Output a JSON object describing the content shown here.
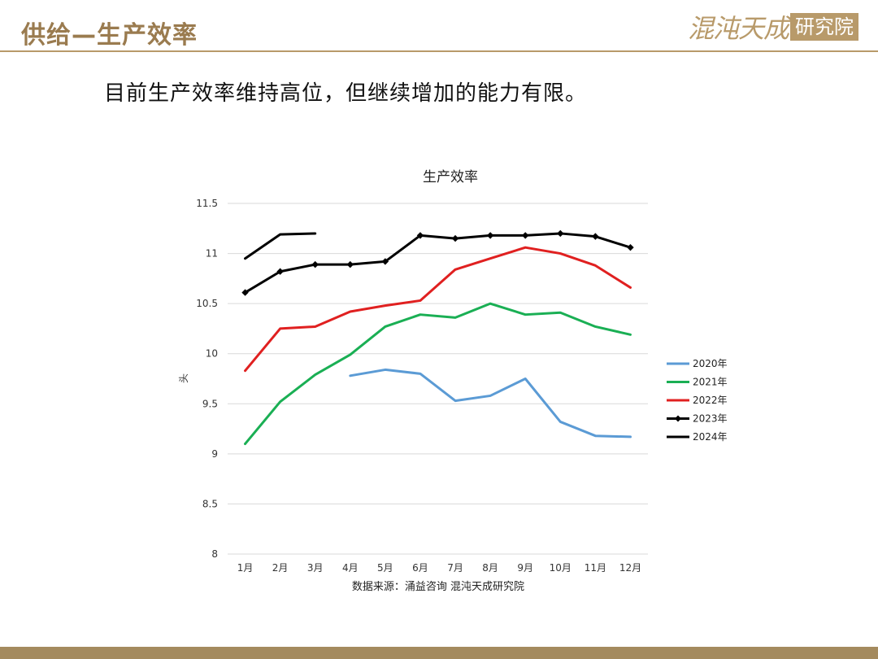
{
  "header": {
    "title": "供给—生产效率",
    "logo_script": "混沌天成",
    "logo_box": "研究院",
    "accent_color": "#9a7b4f"
  },
  "subtitle": "目前生产效率维持高位，但继续增加的能力有限。",
  "chart_data": {
    "type": "line",
    "title": "生产效率",
    "ylabel": "头",
    "xlabel": "",
    "ylim": [
      8,
      11.5
    ],
    "yticks": [
      "8",
      "8.5",
      "9",
      "9.5",
      "10",
      "10.5",
      "11",
      "11.5"
    ],
    "categories": [
      "1月",
      "2月",
      "3月",
      "4月",
      "5月",
      "6月",
      "7月",
      "8月",
      "9月",
      "10月",
      "11月",
      "12月"
    ],
    "grid": true,
    "legend_position": "right",
    "source": "数据来源：涌益咨询 混沌天成研究院",
    "series": [
      {
        "name": "2020年",
        "color": "#5b9bd5",
        "marker": false,
        "values": [
          null,
          null,
          null,
          9.78,
          9.84,
          9.8,
          9.53,
          9.58,
          9.75,
          9.32,
          9.18,
          9.17
        ]
      },
      {
        "name": "2021年",
        "color": "#1aaf54",
        "marker": false,
        "values": [
          9.1,
          9.52,
          9.79,
          9.99,
          10.27,
          10.39,
          10.36,
          10.5,
          10.39,
          10.41,
          10.27,
          10.19
        ]
      },
      {
        "name": "2022年",
        "color": "#e02020",
        "marker": false,
        "values": [
          9.83,
          10.25,
          10.27,
          10.42,
          10.48,
          10.53,
          10.84,
          10.95,
          11.06,
          11.0,
          10.88,
          10.66
        ]
      },
      {
        "name": "2023年",
        "color": "#000000",
        "marker": true,
        "values": [
          10.61,
          10.82,
          10.89,
          10.89,
          10.92,
          11.18,
          11.15,
          11.18,
          11.18,
          11.2,
          11.17,
          11.06
        ]
      },
      {
        "name": "2024年",
        "color": "#000000",
        "marker": false,
        "values": [
          10.95,
          11.19,
          11.2,
          null,
          null,
          null,
          null,
          null,
          null,
          null,
          null,
          null
        ]
      }
    ]
  }
}
